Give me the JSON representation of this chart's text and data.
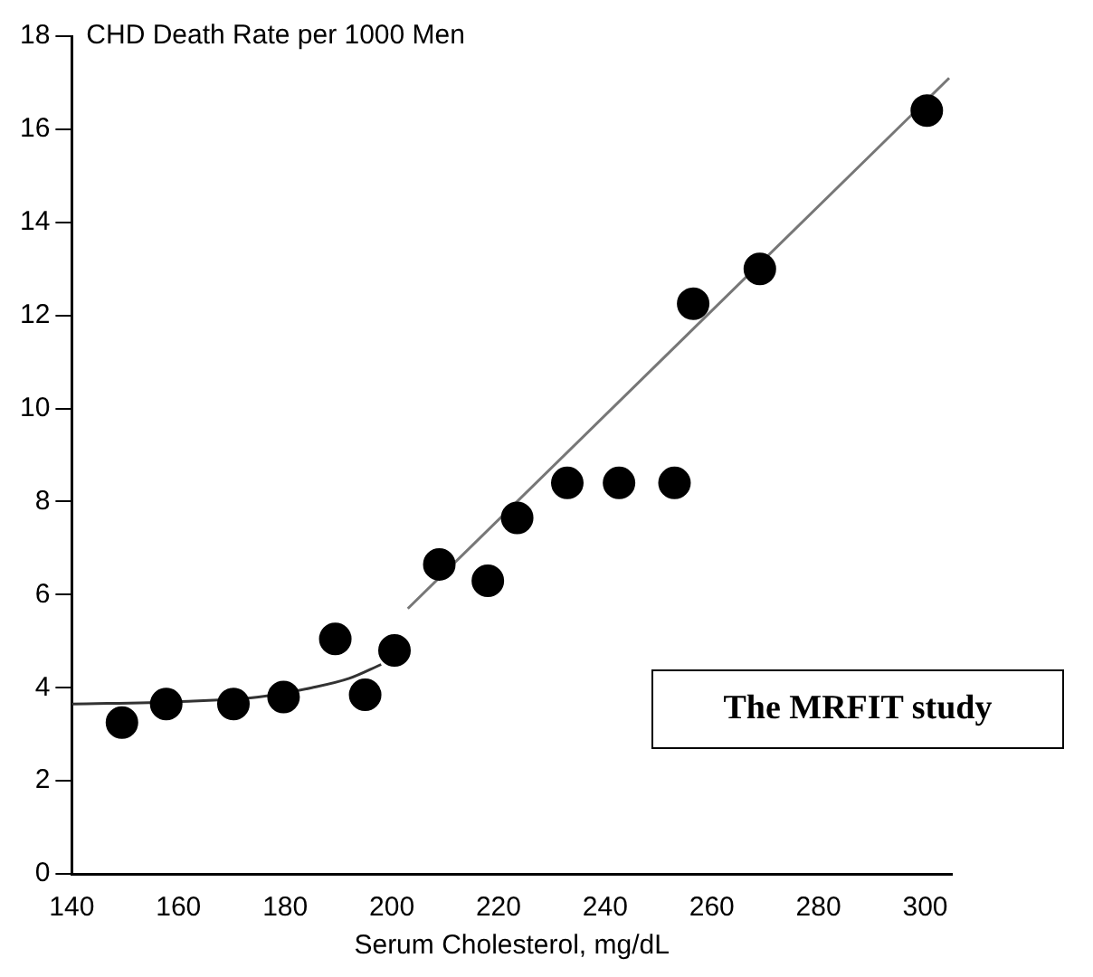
{
  "chart_data": {
    "type": "scatter",
    "xlabel": "Serum Cholesterol, mg/dL",
    "ylabel": "CHD Death Rate per 1000 Men",
    "annotations": [
      "The MRFIT study"
    ],
    "xlim": [
      140,
      305
    ],
    "xticks": [
      140,
      160,
      180,
      200,
      220,
      240,
      260,
      280,
      300
    ],
    "ylim": [
      0,
      18
    ],
    "yticks": [
      0,
      2,
      4,
      6,
      8,
      10,
      12,
      14,
      16,
      18
    ],
    "series": [
      {
        "color": "#000000",
        "marker": "circle",
        "x": [
          149.4,
          157.7,
          170.3,
          179.7,
          189.4,
          195,
          200.5,
          208.9,
          218,
          223.5,
          232.9,
          242.6,
          253,
          256.5,
          269,
          300.3
        ],
        "values": [
          3.25,
          3.65,
          3.65,
          3.8,
          5.05,
          3.85,
          4.8,
          6.65,
          6.3,
          7.65,
          8.4,
          8.4,
          8.4,
          12.25,
          13.0,
          16.4
        ]
      },
      {
        "type": "line",
        "color": "#333333",
        "marker": "none",
        "x": [
          140,
          160,
          175,
          185,
          192,
          198
        ],
        "values": [
          3.65,
          3.7,
          3.8,
          4.0,
          4.2,
          4.5
        ]
      },
      {
        "type": "line",
        "color": "#777777",
        "marker": "none",
        "x": [
          203,
          304.5
        ],
        "values": [
          5.7,
          17.1
        ]
      }
    ]
  }
}
